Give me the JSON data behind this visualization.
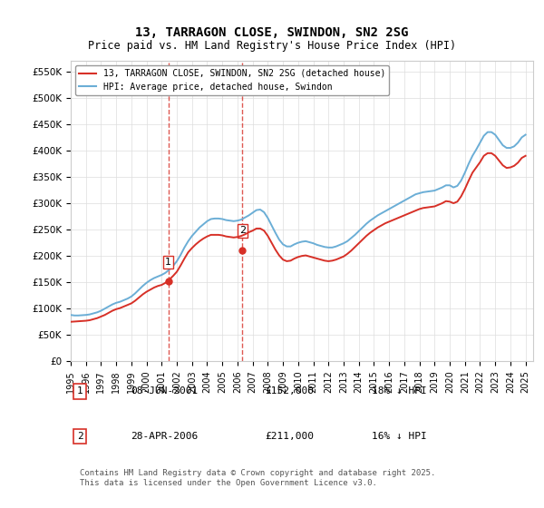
{
  "title": "13, TARRAGON CLOSE, SWINDON, SN2 2SG",
  "subtitle": "Price paid vs. HM Land Registry's House Price Index (HPI)",
  "ylabel_ticks": [
    "£0",
    "£50K",
    "£100K",
    "£150K",
    "£200K",
    "£250K",
    "£300K",
    "£350K",
    "£400K",
    "£450K",
    "£500K",
    "£550K"
  ],
  "ytick_values": [
    0,
    50000,
    100000,
    150000,
    200000,
    250000,
    300000,
    350000,
    400000,
    450000,
    500000,
    550000
  ],
  "ylim": [
    0,
    570000
  ],
  "xlim_start": 1995.0,
  "xlim_end": 2025.5,
  "purchase1_date": 2001.44,
  "purchase1_price": 152000,
  "purchase1_label": "1",
  "purchase2_date": 2006.33,
  "purchase2_price": 211000,
  "purchase2_label": "2",
  "hpi_color": "#6baed6",
  "price_color": "#d73027",
  "vline_color": "#d73027",
  "background_color": "#ffffff",
  "grid_color": "#dddddd",
  "legend_label_price": "13, TARRAGON CLOSE, SWINDON, SN2 2SG (detached house)",
  "legend_label_hpi": "HPI: Average price, detached house, Swindon",
  "table_rows": [
    {
      "num": "1",
      "date": "08-JUN-2001",
      "price": "£152,000",
      "hpi": "18% ↓ HPI"
    },
    {
      "num": "2",
      "date": "28-APR-2006",
      "price": "£211,000",
      "hpi": "16% ↓ HPI"
    }
  ],
  "footer": "Contains HM Land Registry data © Crown copyright and database right 2025.\nThis data is licensed under the Open Government Licence v3.0.",
  "hpi_data": {
    "years": [
      1995.0,
      1995.25,
      1995.5,
      1995.75,
      1996.0,
      1996.25,
      1996.5,
      1996.75,
      1997.0,
      1997.25,
      1997.5,
      1997.75,
      1998.0,
      1998.25,
      1998.5,
      1998.75,
      1999.0,
      1999.25,
      1999.5,
      1999.75,
      2000.0,
      2000.25,
      2000.5,
      2000.75,
      2001.0,
      2001.25,
      2001.5,
      2001.75,
      2002.0,
      2002.25,
      2002.5,
      2002.75,
      2003.0,
      2003.25,
      2003.5,
      2003.75,
      2004.0,
      2004.25,
      2004.5,
      2004.75,
      2005.0,
      2005.25,
      2005.5,
      2005.75,
      2006.0,
      2006.25,
      2006.5,
      2006.75,
      2007.0,
      2007.25,
      2007.5,
      2007.75,
      2008.0,
      2008.25,
      2008.5,
      2008.75,
      2009.0,
      2009.25,
      2009.5,
      2009.75,
      2010.0,
      2010.25,
      2010.5,
      2010.75,
      2011.0,
      2011.25,
      2011.5,
      2011.75,
      2012.0,
      2012.25,
      2012.5,
      2012.75,
      2013.0,
      2013.25,
      2013.5,
      2013.75,
      2014.0,
      2014.25,
      2014.5,
      2014.75,
      2015.0,
      2015.25,
      2015.5,
      2015.75,
      2016.0,
      2016.25,
      2016.5,
      2016.75,
      2017.0,
      2017.25,
      2017.5,
      2017.75,
      2018.0,
      2018.25,
      2018.5,
      2018.75,
      2019.0,
      2019.25,
      2019.5,
      2019.75,
      2020.0,
      2020.25,
      2020.5,
      2020.75,
      2021.0,
      2021.25,
      2021.5,
      2021.75,
      2022.0,
      2022.25,
      2022.5,
      2022.75,
      2023.0,
      2023.25,
      2023.5,
      2023.75,
      2024.0,
      2024.25,
      2024.5,
      2024.75,
      2025.0
    ],
    "values": [
      88000,
      87000,
      87000,
      87500,
      88000,
      89000,
      91000,
      93000,
      96000,
      100000,
      104000,
      108000,
      111000,
      113000,
      116000,
      119000,
      123000,
      129000,
      136000,
      143000,
      149000,
      154000,
      158000,
      161000,
      164000,
      168000,
      174000,
      181000,
      190000,
      202000,
      216000,
      228000,
      238000,
      246000,
      254000,
      260000,
      266000,
      270000,
      271000,
      271000,
      270000,
      268000,
      267000,
      266000,
      267000,
      269000,
      273000,
      277000,
      282000,
      287000,
      288000,
      283000,
      272000,
      258000,
      244000,
      231000,
      222000,
      218000,
      218000,
      222000,
      225000,
      227000,
      228000,
      226000,
      224000,
      221000,
      219000,
      217000,
      216000,
      216000,
      218000,
      221000,
      224000,
      228000,
      234000,
      240000,
      247000,
      254000,
      261000,
      267000,
      272000,
      277000,
      281000,
      285000,
      289000,
      293000,
      297000,
      301000,
      305000,
      309000,
      313000,
      317000,
      319000,
      321000,
      322000,
      323000,
      324000,
      327000,
      330000,
      334000,
      334000,
      330000,
      333000,
      343000,
      358000,
      375000,
      390000,
      402000,
      415000,
      428000,
      435000,
      435000,
      430000,
      420000,
      410000,
      405000,
      405000,
      408000,
      415000,
      425000,
      430000
    ]
  },
  "price_data": {
    "years": [
      1995.0,
      1995.25,
      1995.5,
      1995.75,
      1996.0,
      1996.25,
      1996.5,
      1996.75,
      1997.0,
      1997.25,
      1997.5,
      1997.75,
      1998.0,
      1998.25,
      1998.5,
      1998.75,
      1999.0,
      1999.25,
      1999.5,
      1999.75,
      2000.0,
      2000.25,
      2000.5,
      2000.75,
      2001.0,
      2001.25,
      2001.5,
      2001.75,
      2002.0,
      2002.25,
      2002.5,
      2002.75,
      2003.0,
      2003.25,
      2003.5,
      2003.75,
      2004.0,
      2004.25,
      2004.5,
      2004.75,
      2005.0,
      2005.25,
      2005.5,
      2005.75,
      2006.0,
      2006.25,
      2006.5,
      2006.75,
      2007.0,
      2007.25,
      2007.5,
      2007.75,
      2008.0,
      2008.25,
      2008.5,
      2008.75,
      2009.0,
      2009.25,
      2009.5,
      2009.75,
      2010.0,
      2010.25,
      2010.5,
      2010.75,
      2011.0,
      2011.25,
      2011.5,
      2011.75,
      2012.0,
      2012.25,
      2012.5,
      2012.75,
      2013.0,
      2013.25,
      2013.5,
      2013.75,
      2014.0,
      2014.25,
      2014.5,
      2014.75,
      2015.0,
      2015.25,
      2015.5,
      2015.75,
      2016.0,
      2016.25,
      2016.5,
      2016.75,
      2017.0,
      2017.25,
      2017.5,
      2017.75,
      2018.0,
      2018.25,
      2018.5,
      2018.75,
      2019.0,
      2019.25,
      2019.5,
      2019.75,
      2020.0,
      2020.25,
      2020.5,
      2020.75,
      2021.0,
      2021.25,
      2021.5,
      2021.75,
      2022.0,
      2022.25,
      2022.5,
      2022.75,
      2023.0,
      2023.25,
      2023.5,
      2023.75,
      2024.0,
      2024.25,
      2024.5,
      2024.75,
      2025.0
    ],
    "values": [
      75000,
      75500,
      76000,
      76500,
      77000,
      78000,
      80000,
      82000,
      85000,
      88000,
      92000,
      96000,
      99000,
      101000,
      104000,
      107000,
      110000,
      115000,
      121000,
      127000,
      132000,
      136000,
      140000,
      143000,
      145000,
      149000,
      155000,
      162000,
      170000,
      182000,
      195000,
      207000,
      215000,
      222000,
      228000,
      233000,
      237000,
      240000,
      240000,
      240000,
      239000,
      237000,
      236000,
      235000,
      236000,
      238000,
      241000,
      245000,
      248000,
      252000,
      252000,
      248000,
      238000,
      225000,
      212000,
      201000,
      193000,
      190000,
      191000,
      195000,
      198000,
      200000,
      201000,
      199000,
      197000,
      195000,
      193000,
      191000,
      190000,
      191000,
      193000,
      196000,
      199000,
      204000,
      210000,
      217000,
      224000,
      231000,
      238000,
      244000,
      249000,
      254000,
      258000,
      262000,
      265000,
      268000,
      271000,
      274000,
      277000,
      280000,
      283000,
      286000,
      289000,
      291000,
      292000,
      293000,
      294000,
      297000,
      300000,
      304000,
      303000,
      300000,
      303000,
      313000,
      327000,
      343000,
      358000,
      368000,
      378000,
      390000,
      395000,
      395000,
      390000,
      381000,
      372000,
      367000,
      368000,
      371000,
      377000,
      386000,
      390000
    ]
  }
}
